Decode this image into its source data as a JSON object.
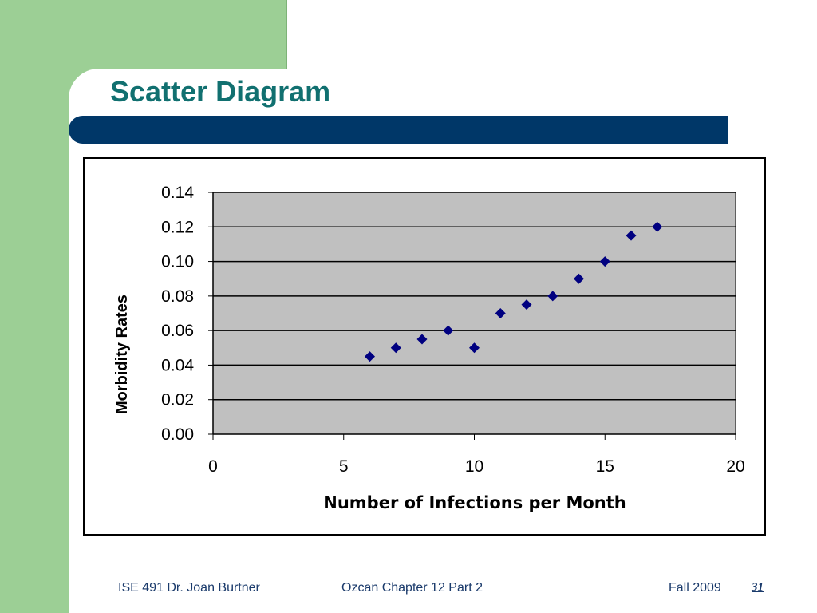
{
  "slide": {
    "title": "Scatter Diagram"
  },
  "footer": {
    "course": "ISE 491  Dr. Joan Burtner",
    "chapter": "Ozcan Chapter 12  Part 2",
    "term": "Fall 2009",
    "page": "31"
  },
  "colors": {
    "green_panel": "#9ccf95",
    "title_text": "#117070",
    "title_bar": "#003768",
    "plot_background": "#c0c0c0",
    "marker": "#000080"
  },
  "chart_data": {
    "type": "scatter",
    "title": "",
    "xlabel": "Number of Infections per Month",
    "ylabel": "Morbidity Rates",
    "xlim": [
      0,
      20
    ],
    "ylim": [
      0,
      0.14
    ],
    "xticks": [
      "0",
      "5",
      "10",
      "15",
      "20"
    ],
    "yticks": [
      "0.00",
      "0.02",
      "0.04",
      "0.06",
      "0.08",
      "0.10",
      "0.12",
      "0.14"
    ],
    "grid": "horizontal",
    "marker": "diamond",
    "points": [
      {
        "x": 6,
        "y": 0.045
      },
      {
        "x": 7,
        "y": 0.05
      },
      {
        "x": 8,
        "y": 0.055
      },
      {
        "x": 9,
        "y": 0.06
      },
      {
        "x": 10,
        "y": 0.05
      },
      {
        "x": 11,
        "y": 0.07
      },
      {
        "x": 12,
        "y": 0.075
      },
      {
        "x": 13,
        "y": 0.08
      },
      {
        "x": 14,
        "y": 0.09
      },
      {
        "x": 15,
        "y": 0.1
      },
      {
        "x": 16,
        "y": 0.115
      },
      {
        "x": 17,
        "y": 0.12
      }
    ]
  }
}
